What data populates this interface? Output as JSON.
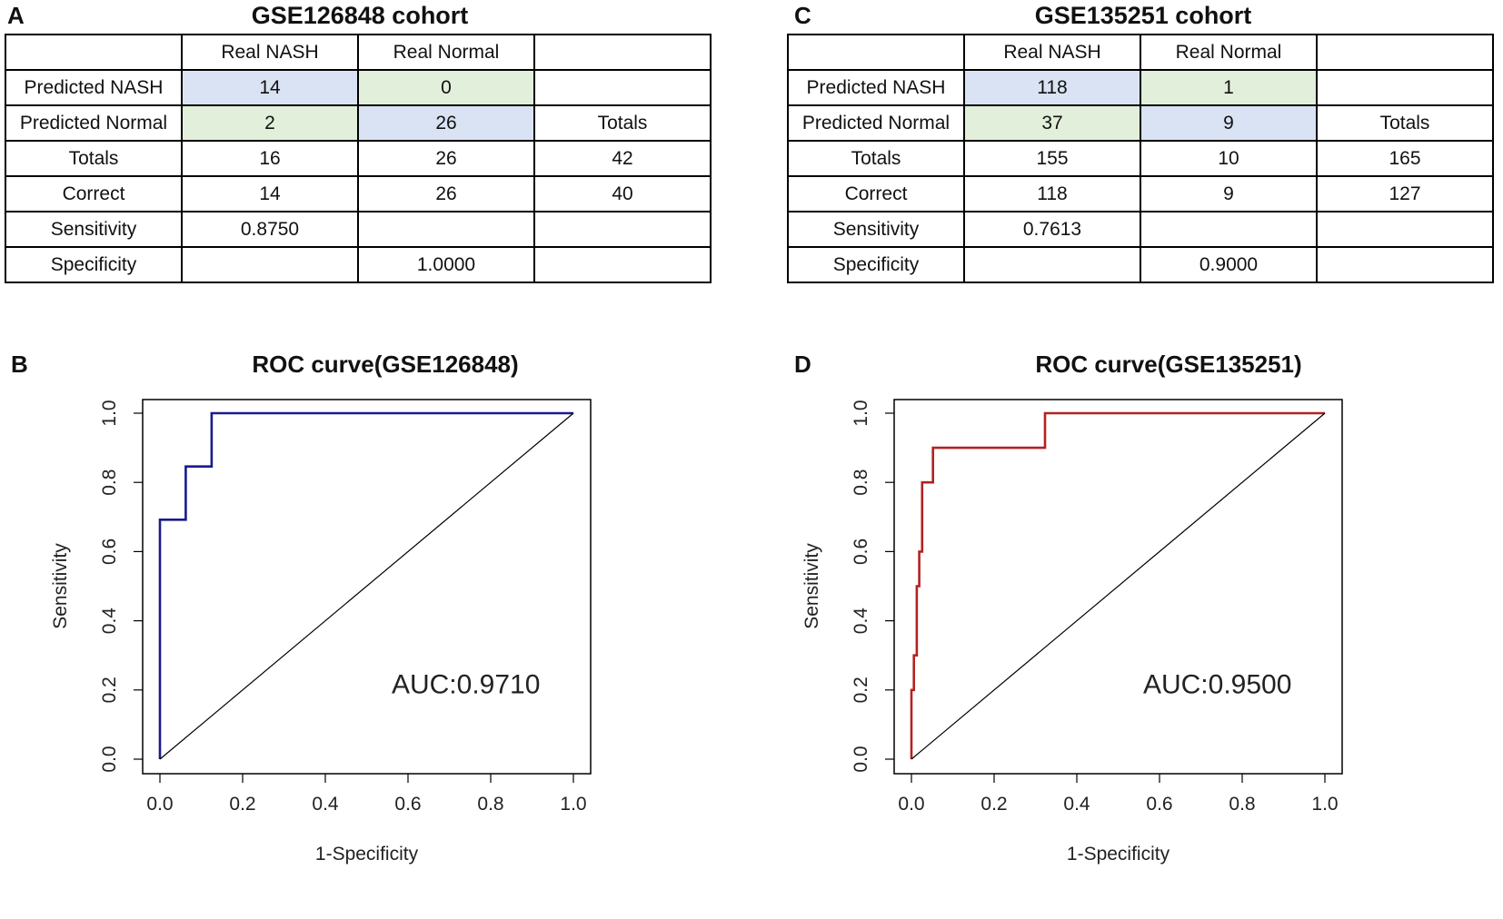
{
  "panels": {
    "A": "A",
    "B": "B",
    "C": "C",
    "D": "D"
  },
  "tables": [
    {
      "title": "GSE126848 cohort",
      "header": [
        "",
        "Real NASH",
        "Real Normal",
        ""
      ],
      "rows": [
        [
          "Predicted NASH",
          "14",
          "0",
          ""
        ],
        [
          "Predicted Normal",
          "2",
          "26",
          "Totals"
        ],
        [
          "Totals",
          "16",
          "26",
          "42"
        ],
        [
          "Correct",
          "14",
          "26",
          "40"
        ],
        [
          "Sensitivity",
          "0.8750",
          "",
          ""
        ],
        [
          "Specificity",
          "",
          "1.0000",
          ""
        ]
      ]
    },
    {
      "title": "GSE135251 cohort",
      "header": [
        "",
        "Real NASH",
        "Real Normal",
        ""
      ],
      "rows": [
        [
          "Predicted NASH",
          "118",
          "1",
          ""
        ],
        [
          "Predicted Normal",
          "37",
          "9",
          "Totals"
        ],
        [
          "Totals",
          "155",
          "10",
          "165"
        ],
        [
          "Correct",
          "118",
          "9",
          "127"
        ],
        [
          "Sensitivity",
          "0.7613",
          "",
          ""
        ],
        [
          "Specificity",
          "",
          "0.9000",
          ""
        ]
      ]
    }
  ],
  "colors": {
    "true_cell": "#dae3f3",
    "false_cell": "#e2efda",
    "roc_b": "#1a1a8c",
    "roc_d": "#b22222"
  },
  "chart_data": [
    {
      "type": "line",
      "title": "ROC curve(GSE126848)",
      "xlabel": "1-Specificity",
      "ylabel": "Sensitivity",
      "xlim": [
        0,
        1
      ],
      "ylim": [
        0,
        1
      ],
      "xticks": [
        "0.0",
        "0.2",
        "0.4",
        "0.6",
        "0.8",
        "1.0"
      ],
      "yticks": [
        "0.0",
        "0.2",
        "0.4",
        "0.6",
        "0.8",
        "1.0"
      ],
      "annotation": "AUC:0.9710",
      "series": [
        {
          "name": "ROC",
          "color": "#1a1a8c",
          "x": [
            0,
            0,
            0.0625,
            0.0625,
            0.125,
            0.125,
            1
          ],
          "y": [
            0,
            0.692,
            0.692,
            0.846,
            0.846,
            1,
            1
          ]
        },
        {
          "name": "reference",
          "color": "#000000",
          "x": [
            0,
            1
          ],
          "y": [
            0,
            1
          ]
        }
      ]
    },
    {
      "type": "line",
      "title": "ROC curve(GSE135251)",
      "xlabel": "1-Specificity",
      "ylabel": "Sensitivity",
      "xlim": [
        0,
        1
      ],
      "ylim": [
        0,
        1
      ],
      "xticks": [
        "0.0",
        "0.2",
        "0.4",
        "0.6",
        "0.8",
        "1.0"
      ],
      "yticks": [
        "0.0",
        "0.2",
        "0.4",
        "0.6",
        "0.8",
        "1.0"
      ],
      "annotation": "AUC:0.9500",
      "series": [
        {
          "name": "ROC",
          "color": "#b22222",
          "x": [
            0,
            0,
            0.006,
            0.006,
            0.013,
            0.013,
            0.019,
            0.019,
            0.026,
            0.026,
            0.032,
            0.032,
            0.052,
            0.052,
            0.323,
            0.323,
            1
          ],
          "y": [
            0,
            0.2,
            0.2,
            0.3,
            0.3,
            0.5,
            0.5,
            0.6,
            0.6,
            0.8,
            0.8,
            0.8,
            0.8,
            0.9,
            0.9,
            1,
            1
          ]
        },
        {
          "name": "reference",
          "color": "#000000",
          "x": [
            0,
            1
          ],
          "y": [
            0,
            1
          ]
        }
      ]
    }
  ]
}
